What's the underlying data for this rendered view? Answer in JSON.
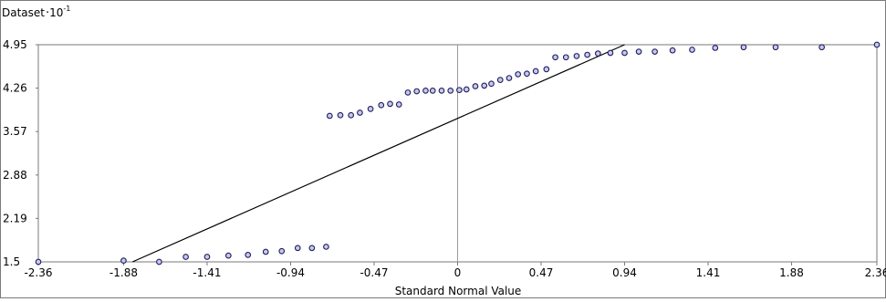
{
  "chart_data": {
    "type": "scatter",
    "title": "",
    "xlabel": "Standard Normal Value",
    "ylabel_base": "Dataset",
    "ylabel_sep": "·",
    "ylabel_mult": "10",
    "ylabel_exp": "-1",
    "xlim": [
      -2.36,
      2.36
    ],
    "ylim": [
      1.5,
      4.95
    ],
    "x_ticks": [
      -2.36,
      -1.88,
      -1.41,
      -0.94,
      -0.47,
      0,
      0.47,
      0.94,
      1.41,
      1.88,
      2.36
    ],
    "x_tick_labels": [
      "-2.36",
      "-1.88",
      "-1.41",
      "-0.94",
      "-0.47",
      "0",
      "0.47",
      "0.94",
      "1.41",
      "1.88",
      "2.36"
    ],
    "y_ticks": [
      1.5,
      2.19,
      2.88,
      3.57,
      4.26,
      4.95
    ],
    "y_tick_labels": [
      "1.5",
      "2.19",
      "2.88",
      "3.57",
      "4.26",
      "4.95"
    ],
    "grid": false,
    "reference_line": {
      "x": [
        -1.83,
        0.94
      ],
      "y": [
        1.5,
        4.95
      ]
    },
    "zero_line_x": 0,
    "points": {
      "x": [
        -2.36,
        -1.88,
        -1.68,
        -1.53,
        -1.41,
        -1.29,
        -1.18,
        -1.08,
        -0.99,
        -0.9,
        -0.82,
        -0.74,
        -0.72,
        -0.66,
        -0.6,
        -0.55,
        -0.49,
        -0.43,
        -0.38,
        -0.33,
        -0.28,
        -0.23,
        -0.18,
        -0.14,
        -0.09,
        -0.04,
        0.01,
        0.05,
        0.1,
        0.15,
        0.19,
        0.24,
        0.29,
        0.34,
        0.39,
        0.44,
        0.5,
        0.55,
        0.61,
        0.67,
        0.73,
        0.79,
        0.86,
        0.94,
        1.02,
        1.11,
        1.21,
        1.32,
        1.45,
        1.61,
        1.79,
        2.05,
        2.36
      ],
      "y": [
        1.5,
        1.52,
        1.5,
        1.58,
        1.58,
        1.6,
        1.61,
        1.66,
        1.67,
        1.72,
        1.72,
        1.74,
        3.82,
        3.83,
        3.83,
        3.87,
        3.93,
        3.99,
        4.01,
        4.0,
        4.19,
        4.21,
        4.22,
        4.22,
        4.22,
        4.22,
        4.23,
        4.24,
        4.29,
        4.3,
        4.33,
        4.39,
        4.42,
        4.48,
        4.49,
        4.53,
        4.56,
        4.75,
        4.75,
        4.77,
        4.79,
        4.81,
        4.82,
        4.82,
        4.84,
        4.84,
        4.86,
        4.87,
        4.9,
        4.91,
        4.91,
        4.91,
        4.95
      ]
    },
    "colors": {
      "point_fill": "#c8c8f0",
      "point_stroke": "#1e1e5a",
      "line": "#000000",
      "zero_line": "#9a9a9a",
      "frame": "#7a7a7a"
    }
  }
}
